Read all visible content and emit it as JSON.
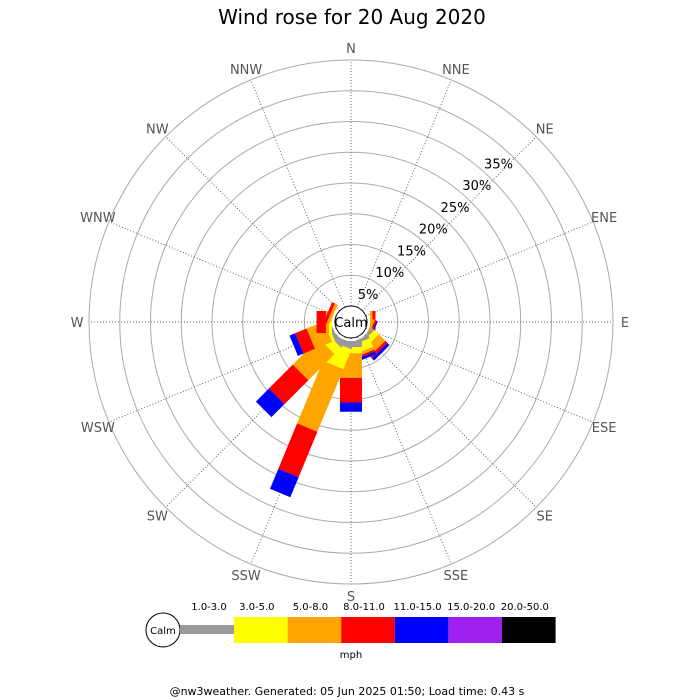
{
  "chart_data": {
    "type": "wind-rose",
    "title": "Wind rose for 20 Aug 2020",
    "directions": [
      "N",
      "NNE",
      "NE",
      "ENE",
      "E",
      "ESE",
      "SE",
      "SSE",
      "S",
      "SSW",
      "SW",
      "WSW",
      "W",
      "WNW",
      "NW",
      "NNW"
    ],
    "radial_ticks": [
      "5%",
      "10%",
      "15%",
      "20%",
      "25%",
      "30%",
      "35%"
    ],
    "radial_max": 40,
    "calm_label": "Calm",
    "speed_bins": [
      {
        "label": "1.0-3.0",
        "color": "#999999"
      },
      {
        "label": "3.0-5.0",
        "color": "#ffff00"
      },
      {
        "label": "5.0-8.0",
        "color": "#ffa500"
      },
      {
        "label": "8.0-11.0",
        "color": "#ff0000"
      },
      {
        "label": "11.0-15.0",
        "color": "#0000ff"
      },
      {
        "label": "15.0-20.0",
        "color": "#a020f0"
      },
      {
        "label": "20.0-50.0",
        "color": "#000000"
      }
    ],
    "unit": "mph",
    "series": [
      {
        "direction": "N",
        "values": [
          0,
          0,
          0,
          0,
          0,
          0,
          0
        ]
      },
      {
        "direction": "NNE",
        "values": [
          0,
          0,
          0,
          0,
          0,
          0,
          0
        ]
      },
      {
        "direction": "NE",
        "values": [
          0,
          0,
          0,
          0,
          0,
          0,
          0
        ]
      },
      {
        "direction": "ENE",
        "values": [
          0,
          0,
          0,
          0,
          0,
          0,
          0
        ]
      },
      {
        "direction": "E",
        "values": [
          0,
          0,
          0.4,
          0.5,
          0,
          0,
          0
        ]
      },
      {
        "direction": "ESE",
        "values": [
          0,
          0,
          0.4,
          0.3,
          0.2,
          0,
          0
        ]
      },
      {
        "direction": "SE",
        "values": [
          0.5,
          1.0,
          1.5,
          0.5,
          0.5,
          0,
          0
        ]
      },
      {
        "direction": "SSE",
        "values": [
          0.5,
          1.5,
          0.5,
          0.3,
          0.5,
          0,
          0
        ]
      },
      {
        "direction": "S",
        "values": [
          1.0,
          1.0,
          4.0,
          4.0,
          1.5,
          0,
          0
        ]
      },
      {
        "direction": "SSW",
        "values": [
          1.0,
          3.5,
          11.0,
          8.0,
          3.5,
          0,
          0
        ]
      },
      {
        "direction": "SW",
        "values": [
          1.0,
          1.5,
          6.0,
          5.5,
          3.0,
          0,
          0
        ]
      },
      {
        "direction": "WSW",
        "values": [
          0.5,
          0.5,
          3.0,
          2.0,
          1.0,
          0,
          0
        ]
      },
      {
        "direction": "W",
        "values": [
          0,
          0.5,
          0.5,
          1.5,
          0,
          0,
          0
        ]
      },
      {
        "direction": "WNW",
        "values": [
          0,
          0,
          0.5,
          0.5,
          0,
          0,
          0
        ]
      },
      {
        "direction": "NW",
        "values": [
          0,
          0,
          0,
          0,
          0,
          0,
          0
        ]
      },
      {
        "direction": "NNW",
        "values": [
          0,
          0,
          0,
          0,
          0,
          0,
          0
        ]
      }
    ]
  },
  "footer": "@nw3weather. Generated: 05 Jun 2025 01:50; Load time: 0.43 s"
}
